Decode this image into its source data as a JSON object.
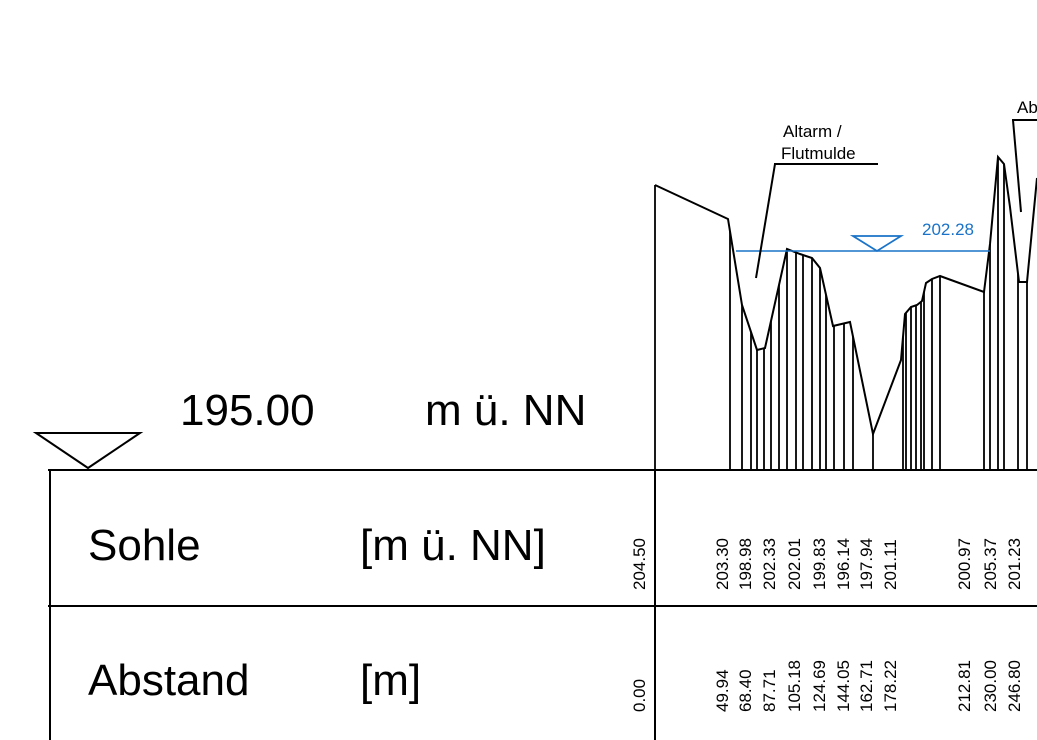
{
  "reference": {
    "elevation": "195.00",
    "unit": "m ü. NN"
  },
  "rows": {
    "sohle": {
      "label": "Sohle",
      "unit": "[m ü. NN]"
    },
    "abstand": {
      "label": "Abstand",
      "unit": "[m]"
    }
  },
  "annotations": {
    "altarm_line1": "Altarm /",
    "altarm_line2": "Flutmulde",
    "partial_label": "Ab",
    "water_level": "202.28"
  },
  "colors": {
    "water_level": "#1a73c8",
    "ink": "#000000"
  },
  "chart_data": {
    "type": "cross-section",
    "x_label": "Abstand [m]",
    "y_label": "Sohle [m ü. NN]",
    "datum": 195.0,
    "water_level": 202.28,
    "stations": [
      {
        "abstand": "0.00",
        "sohle": "204.50"
      },
      {
        "abstand": "49.94",
        "sohle": "203.30"
      },
      {
        "abstand": "68.40",
        "sohle": "198.98"
      },
      {
        "abstand": "87.71",
        "sohle": "202.33"
      },
      {
        "abstand": "105.18",
        "sohle": "202.01"
      },
      {
        "abstand": "124.69",
        "sohle": "199.83"
      },
      {
        "abstand": "144.05",
        "sohle": "196.14"
      },
      {
        "abstand": "162.71",
        "sohle": "197.94"
      },
      {
        "abstand": "178.22",
        "sohle": "201.11"
      },
      {
        "abstand": "212.81",
        "sohle": "200.97"
      },
      {
        "abstand": "230.00",
        "sohle": "205.37"
      },
      {
        "abstand": "246.80",
        "sohle": "201.23"
      }
    ]
  }
}
